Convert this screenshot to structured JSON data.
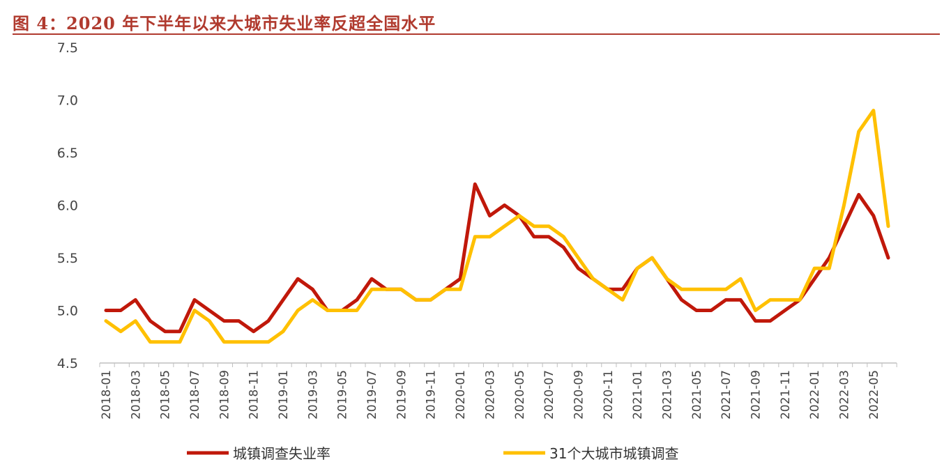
{
  "chart_data": {
    "type": "line",
    "title": "图 4：2020 年下半年以来大城市失业率反超全国水平",
    "xlabel": "",
    "ylabel": "",
    "ylim": [
      4.5,
      7.5
    ],
    "yticks": [
      "4.5",
      "5.0",
      "5.5",
      "6.0",
      "6.5",
      "7.0",
      "7.5"
    ],
    "grid": false,
    "legend_placement": "bottom",
    "x": [
      "2018-01",
      "2018-02",
      "2018-03",
      "2018-04",
      "2018-05",
      "2018-06",
      "2018-07",
      "2018-08",
      "2018-09",
      "2018-10",
      "2018-11",
      "2018-12",
      "2019-01",
      "2019-02",
      "2019-03",
      "2019-04",
      "2019-05",
      "2019-06",
      "2019-07",
      "2019-08",
      "2019-09",
      "2019-10",
      "2019-11",
      "2019-12",
      "2020-01",
      "2020-02",
      "2020-03",
      "2020-04",
      "2020-05",
      "2020-06",
      "2020-07",
      "2020-08",
      "2020-09",
      "2020-10",
      "2020-11",
      "2020-12",
      "2021-01",
      "2021-02",
      "2021-03",
      "2021-04",
      "2021-05",
      "2021-06",
      "2021-07",
      "2021-08",
      "2021-09",
      "2021-10",
      "2021-11",
      "2021-12",
      "2022-01",
      "2022-02",
      "2022-03",
      "2022-04",
      "2022-05",
      "2022-06"
    ],
    "series": [
      {
        "name": "城镇调查失业率",
        "color": "#c0180a",
        "values": [
          5.0,
          5.0,
          5.1,
          4.9,
          4.8,
          4.8,
          5.1,
          5.0,
          4.9,
          4.9,
          4.8,
          4.9,
          5.1,
          5.3,
          5.2,
          5.0,
          5.0,
          5.1,
          5.3,
          5.2,
          5.2,
          5.1,
          5.1,
          5.2,
          5.3,
          6.2,
          5.9,
          6.0,
          5.9,
          5.7,
          5.7,
          5.6,
          5.4,
          5.3,
          5.2,
          5.2,
          5.4,
          5.5,
          5.3,
          5.1,
          5.0,
          5.0,
          5.1,
          5.1,
          4.9,
          4.9,
          5.0,
          5.1,
          5.3,
          5.5,
          5.8,
          6.1,
          5.9,
          5.5
        ]
      },
      {
        "name": "31个大城市城镇调查",
        "color": "#ffc000",
        "values": [
          4.9,
          4.8,
          4.9,
          4.7,
          4.7,
          4.7,
          5.0,
          4.9,
          4.7,
          4.7,
          4.7,
          4.7,
          4.8,
          5.0,
          5.1,
          5.0,
          5.0,
          5.0,
          5.2,
          5.2,
          5.2,
          5.1,
          5.1,
          5.2,
          5.2,
          5.7,
          5.7,
          5.8,
          5.9,
          5.8,
          5.8,
          5.7,
          5.5,
          5.3,
          5.2,
          5.1,
          5.4,
          5.5,
          5.3,
          5.2,
          5.2,
          5.2,
          5.2,
          5.3,
          5.0,
          5.1,
          5.1,
          5.1,
          5.4,
          5.4,
          6.0,
          6.7,
          6.9,
          5.8
        ]
      }
    ]
  }
}
